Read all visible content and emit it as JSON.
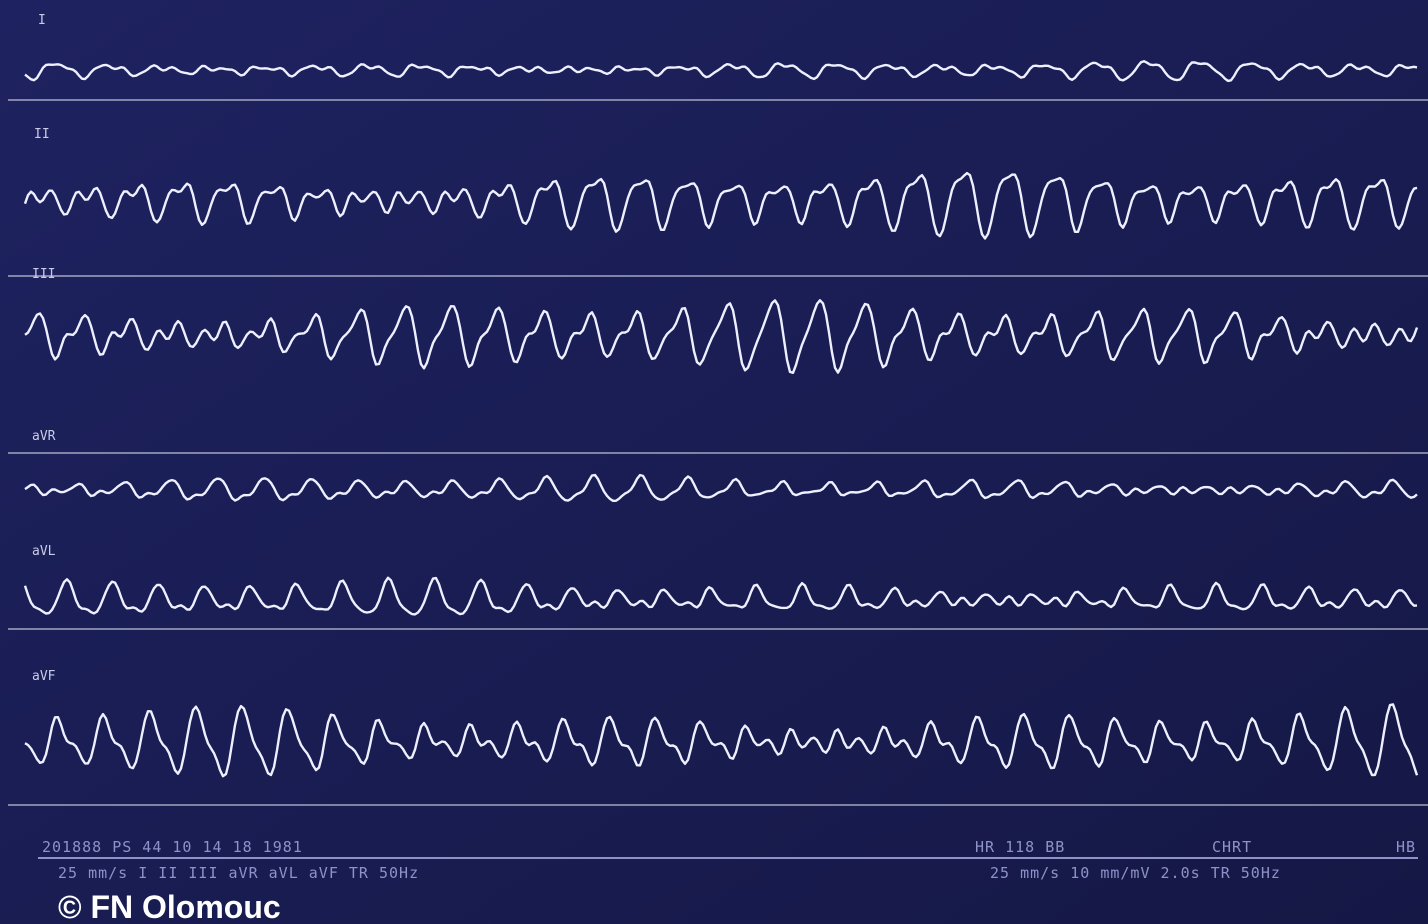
{
  "leads": [
    {
      "label": "I"
    },
    {
      "label": "II"
    },
    {
      "label": "III"
    },
    {
      "label": "aVR"
    },
    {
      "label": "aVL"
    },
    {
      "label": "aVF"
    }
  ],
  "footer": {
    "left_top": "201888 PS 44 10 14 18 1981",
    "left_bottom": "25 mm/s I II III aVR aVL aVF TR 50Hz",
    "right_top_1": "HR 118 BB",
    "right_top_2": "CHRT",
    "right_top_3": "HB",
    "right_bottom": "25 mm/s 10 mm/mV 2.0s TR 50Hz"
  },
  "watermark": "© FN Olomouc"
}
